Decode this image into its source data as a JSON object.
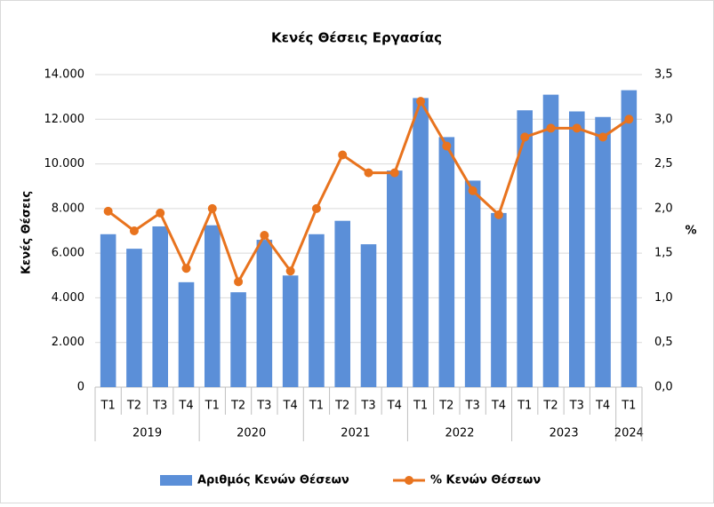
{
  "chart_data": {
    "type": "bar-line",
    "title": "Κενές Θέσεις Εργασίας",
    "y_label": "Κενές Θέσεις",
    "y2_label": "%",
    "year_groups": [
      {
        "year": "2019",
        "quarters": [
          "T1",
          "T2",
          "T3",
          "T4"
        ]
      },
      {
        "year": "2020",
        "quarters": [
          "T1",
          "T2",
          "T3",
          "T4"
        ]
      },
      {
        "year": "2021",
        "quarters": [
          "T1",
          "T2",
          "T3",
          "T4"
        ]
      },
      {
        "year": "2022",
        "quarters": [
          "T1",
          "T2",
          "T3",
          "T4"
        ]
      },
      {
        "year": "2023",
        "quarters": [
          "T1",
          "T2",
          "T3",
          "T4"
        ]
      },
      {
        "year": "2024",
        "quarters": [
          "T1"
        ]
      }
    ],
    "series": [
      {
        "name": "Αριθμός Κενών Θέσεων",
        "color": "#5b8fd8",
        "axis": "y",
        "values": [
          6850,
          6200,
          7200,
          4700,
          7250,
          4250,
          6600,
          5000,
          6850,
          7450,
          6400,
          9700,
          12950,
          11200,
          9250,
          7800,
          12400,
          13100,
          12350,
          12100,
          13300
        ]
      },
      {
        "name": "% Κενών Θέσεων",
        "color": "#e8731e",
        "axis": "y2",
        "values": [
          1.97,
          1.75,
          1.95,
          1.33,
          2.0,
          1.18,
          1.7,
          1.3,
          2.0,
          2.6,
          2.4,
          2.4,
          3.2,
          2.7,
          2.2,
          1.93,
          2.8,
          2.9,
          2.9,
          2.8,
          3.0
        ]
      }
    ],
    "ylim": [
      0,
      14000
    ],
    "yticks": [
      0,
      {
        "value": 2000,
        "label": "2.000"
      },
      {
        "value": 4000,
        "label": "4.000"
      },
      {
        "value": 6000,
        "label": "6.000"
      },
      {
        "value": 8000,
        "label": "8.000"
      },
      {
        "value": 10000,
        "label": "10.000"
      },
      {
        "value": 12000,
        "label": "12.000"
      },
      {
        "value": 14000,
        "label": "14.000"
      }
    ],
    "y2lim": [
      0,
      3.5
    ],
    "y2ticks": [
      {
        "value": 0,
        "label": "0,0"
      },
      {
        "value": 0.5,
        "label": "0,5"
      },
      {
        "value": 1,
        "label": "1,0"
      },
      {
        "value": 1.5,
        "label": "1,5"
      },
      {
        "value": 2,
        "label": "2,0"
      },
      {
        "value": 2.5,
        "label": "2,5"
      },
      {
        "value": 3,
        "label": "3,0"
      },
      {
        "value": 3.5,
        "label": "3,5"
      }
    ],
    "grid": true,
    "legend": "bottom"
  }
}
